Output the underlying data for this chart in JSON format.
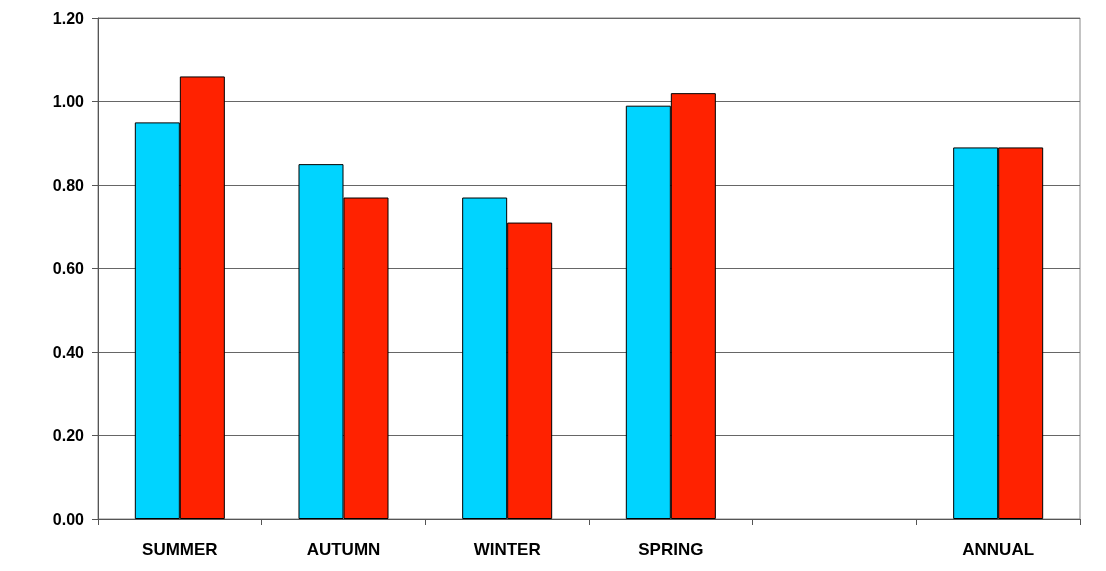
{
  "chart_data": {
    "type": "bar",
    "categories": [
      "SUMMER",
      "AUTUMN",
      "WINTER",
      "SPRING",
      null,
      "ANNUAL"
    ],
    "series": [
      {
        "color": "#00d4ff",
        "values": [
          0.95,
          0.85,
          0.77,
          0.99,
          null,
          0.89
        ]
      },
      {
        "color": "#ff2200",
        "values": [
          1.06,
          0.77,
          0.71,
          1.02,
          null,
          0.89
        ]
      }
    ],
    "ylim": [
      0,
      1.2
    ],
    "yticks": [
      {
        "value": 0,
        "label": "0.00"
      },
      {
        "value": 0.2,
        "label": "0.20"
      },
      {
        "value": 0.4,
        "label": "0.40"
      },
      {
        "value": 0.6,
        "label": "0.60"
      },
      {
        "value": 0.8,
        "label": "0.80"
      },
      {
        "value": 1,
        "label": "1.00"
      },
      {
        "value": 1.2,
        "label": "1.20"
      }
    ],
    "grid": "y"
  }
}
